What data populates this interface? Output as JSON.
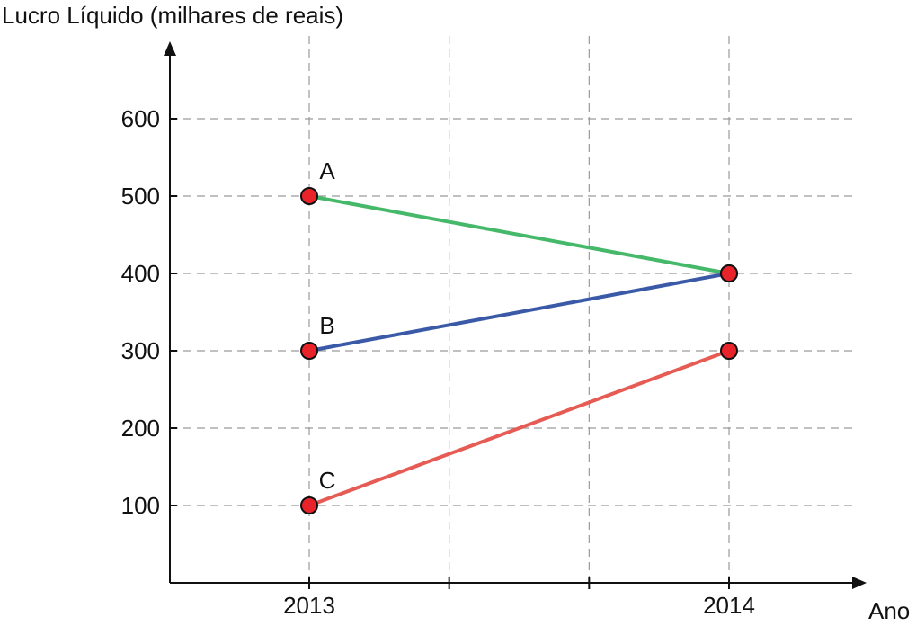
{
  "chart_data": {
    "type": "line",
    "ylabel": "Lucro Líquido (milhares de reais)",
    "xlabel": "Ano",
    "categories": [
      "2013",
      "2014"
    ],
    "yticks": [
      "100",
      "200",
      "300",
      "400",
      "500",
      "600"
    ],
    "ylim": [
      0,
      680
    ],
    "grid": true,
    "series": [
      {
        "name": "A",
        "values": [
          500,
          400
        ],
        "color": "#46b86a"
      },
      {
        "name": "B",
        "values": [
          300,
          400
        ],
        "color": "#3a5aa8"
      },
      {
        "name": "C",
        "values": [
          100,
          300
        ],
        "color": "#e65c55"
      }
    ],
    "point_color": "#e8232a"
  }
}
